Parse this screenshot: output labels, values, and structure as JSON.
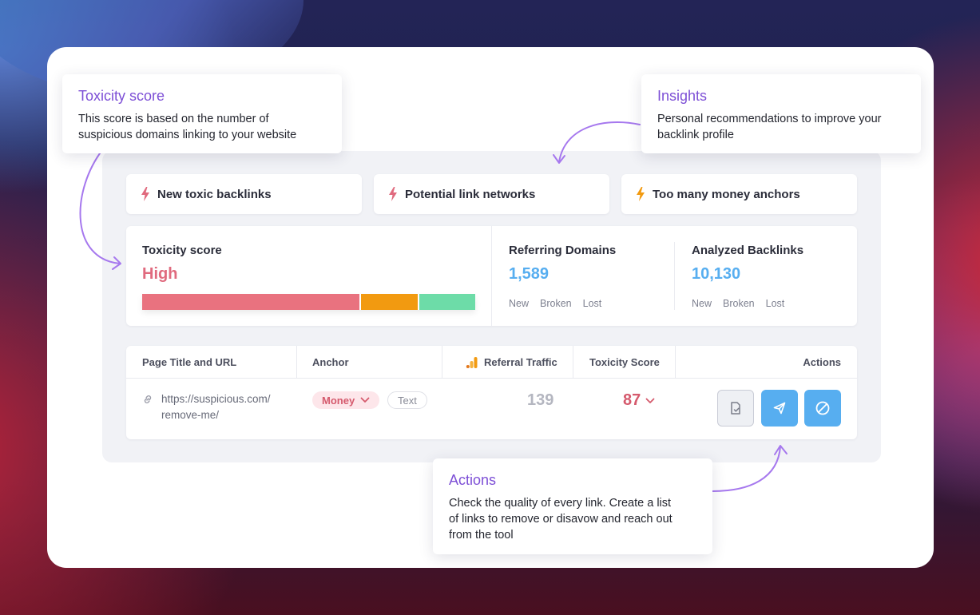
{
  "insights": [
    {
      "label": "New toxic backlinks",
      "bolt_color": "#e06a7e"
    },
    {
      "label": "Potential link networks",
      "bolt_color": "#e06a7e"
    },
    {
      "label": "Too many money anchors",
      "bolt_color": "#f29a10"
    }
  ],
  "toxicity": {
    "title": "Toxicity score",
    "level": "High",
    "level_color": "#e06a7e",
    "bar_segments": [
      {
        "share": 0.653,
        "color": "#e9727f"
      },
      {
        "share": 0.175,
        "color": "#f29a10"
      },
      {
        "share": 0.172,
        "color": "#6ddca8"
      }
    ]
  },
  "referring_domains": {
    "title": "Referring Domains",
    "value": "1,589",
    "new": "New",
    "broken": "Broken",
    "lost": "Lost"
  },
  "analyzed_backlinks": {
    "title": "Analyzed Backlinks",
    "value": "10,130",
    "new": "New",
    "broken": "Broken",
    "lost": "Lost"
  },
  "metric_value_color": "#57aef0",
  "table": {
    "columns": {
      "page": "Page Title and URL",
      "anchor": "Anchor",
      "traffic": "Referral Traffic",
      "toxicity": "Toxicity Score",
      "actions": "Actions"
    },
    "row": {
      "url_line1": "https://suspicious.com/",
      "url_line2": "remove-me/",
      "anchor_money": "Money",
      "anchor_text": "Text",
      "traffic": "139",
      "toxicity": "87"
    },
    "action_icons": [
      "document-check-icon",
      "send-icon",
      "block-icon"
    ]
  },
  "callouts": {
    "toxicity": {
      "title": "Toxicity score",
      "line1": "This score is based on the number of",
      "line2": "suspicious domains linking to your website"
    },
    "insights": {
      "title": "Insights",
      "line1": "Personal recommendations to improve your",
      "line2": "backlink profile"
    },
    "actions": {
      "title": "Actions",
      "line1": "Check the quality of every link. Create a list",
      "line2": "of links to remove or disavow and reach out",
      "line3": "from the tool"
    }
  },
  "accent": "#7d4fd6"
}
